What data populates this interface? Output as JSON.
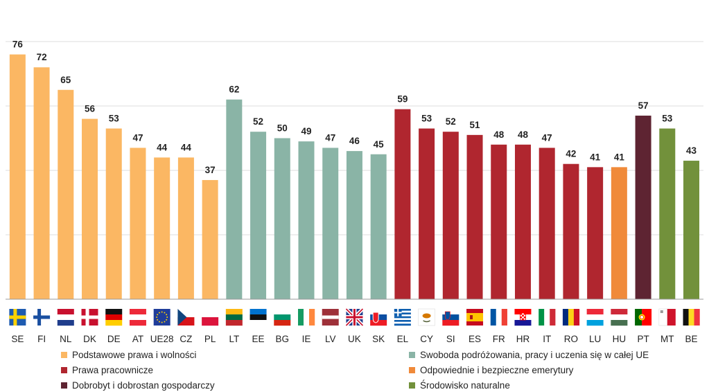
{
  "chart_data": {
    "type": "bar",
    "categories": [
      "SE",
      "FI",
      "NL",
      "DK",
      "DE",
      "AT",
      "UE28",
      "CZ",
      "PL",
      "LT",
      "EE",
      "BG",
      "IE",
      "LV",
      "UK",
      "SK",
      "EL",
      "CY",
      "SI",
      "ES",
      "FR",
      "HR",
      "IT",
      "RO",
      "LU",
      "HU",
      "PT",
      "MT",
      "BE"
    ],
    "values": [
      76,
      72,
      65,
      56,
      53,
      47,
      44,
      44,
      37,
      62,
      52,
      50,
      49,
      47,
      46,
      45,
      59,
      53,
      52,
      51,
      48,
      48,
      47,
      42,
      41,
      41,
      57,
      53,
      43
    ],
    "groups": [
      0,
      0,
      0,
      0,
      0,
      0,
      0,
      0,
      0,
      1,
      1,
      1,
      1,
      1,
      1,
      1,
      2,
      2,
      2,
      2,
      2,
      2,
      2,
      2,
      2,
      3,
      4,
      5,
      5
    ],
    "ylim": [
      0,
      80
    ],
    "grid": true,
    "gridlines": [
      20,
      40,
      60,
      80
    ],
    "legend_position": "bottom",
    "legend": [
      {
        "label": "Podstawowe prawa i wolności",
        "color": "#FBB763"
      },
      {
        "label": "Swoboda podróżowania, pracy i uczenia się w całej UE",
        "color": "#8AB4A6"
      },
      {
        "label": "Prawa pracownicze",
        "color": "#B0262F"
      },
      {
        "label": "Odpowiednie i bezpieczne emerytury",
        "color": "#F08A3A"
      },
      {
        "label": "Dobrobyt i dobrostan gospodarczy",
        "color": "#5E2432"
      },
      {
        "label": "Środowisko naturalne",
        "color": "#72913B"
      }
    ]
  }
}
